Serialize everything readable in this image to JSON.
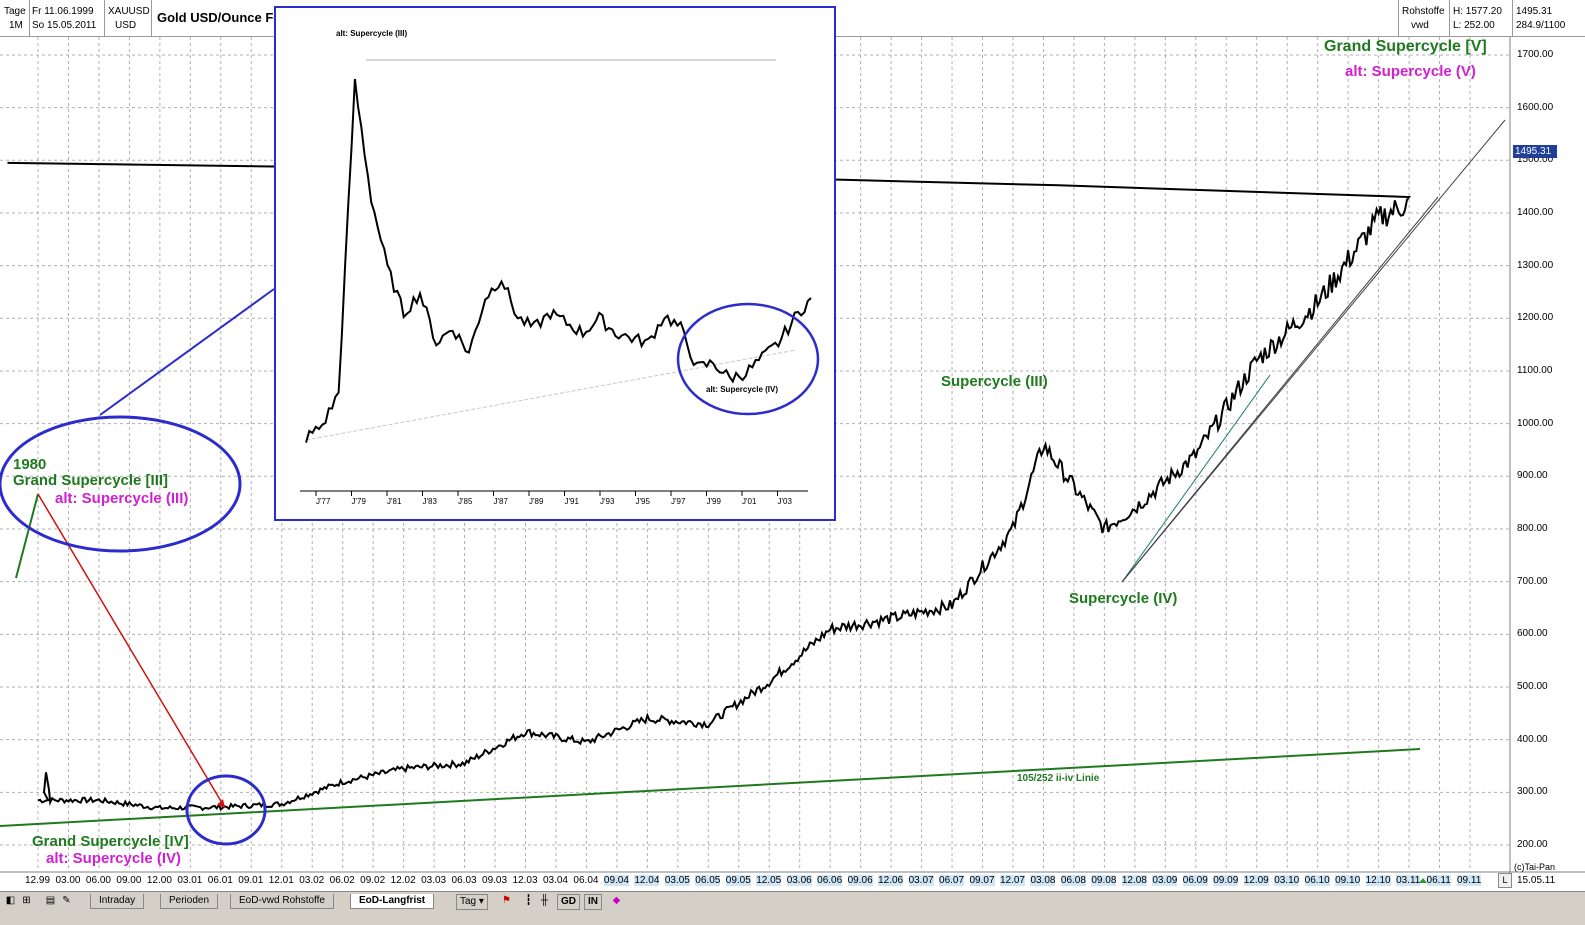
{
  "header": {
    "period_label": "Tage",
    "period_value": "1M",
    "date_from": "Fr 11.06.1999",
    "date_to": "So 15.05.2011",
    "symbol": "XAUUSD",
    "currency": "USD",
    "title": "Gold USD/Ounce  Forex",
    "source1": "Rohstoffe",
    "source2": "vwd",
    "high": "H:  1577.20",
    "low": "L:  252.00",
    "last": "1495.31",
    "range": "284.9/1100"
  },
  "price_tag": "1495.31",
  "end_date": "15.05.11",
  "copyright": "(c)Tai-Pan",
  "y_labels": [
    "1700.00",
    "1600.00",
    "1500.00",
    "1400.00",
    "1300.00",
    "1200.00",
    "1100.00",
    "1000.00",
    "900.00",
    "800.00",
    "700.00",
    "600.00",
    "500.00",
    "400.00",
    "300.00",
    "200.00"
  ],
  "x_labels": [
    "12.99",
    "03.00",
    "06.00",
    "09.00",
    "12.00",
    "03.01",
    "06.01",
    "09.01",
    "12.01",
    "03.02",
    "06.02",
    "09.02",
    "12.02",
    "03.03",
    "06.03",
    "09.03",
    "12.03",
    "03.04",
    "06.04",
    "09.04",
    "12.04",
    "03.05",
    "06.05",
    "09.05",
    "12.05",
    "03.06",
    "06.06",
    "09.06",
    "12.06",
    "03.07",
    "06.07",
    "09.07",
    "12.07",
    "03.08",
    "06.08",
    "09.08",
    "12.08",
    "03.09",
    "06.09",
    "09.09",
    "12.09",
    "03.10",
    "06.10",
    "09.10",
    "12.10",
    "03.11",
    "06.11",
    "09.11"
  ],
  "annotations": {
    "grand_v": "Grand Supercycle [V]",
    "alt_v": "alt: Supercycle (V)",
    "sc_iii": "Supercycle (III)",
    "sc_iv": "Supercycle (IV)",
    "year_1980": "1980",
    "grand_iii": "Grand Supercycle [III]",
    "alt_iii": "alt: Supercycle (III)",
    "grand_iv": "Grand Supercycle [IV]",
    "alt_iv": "alt: Supercycle (IV)",
    "trendline": "105/252 ii-iv Linie"
  },
  "inset": {
    "top_label": "alt: Supercycle (III)",
    "circle_label": "alt: Supercycle (IV)",
    "x_labels": [
      "J'77",
      "J'79",
      "J'81",
      "J'83",
      "J'85",
      "J'87",
      "J'89",
      "J'91",
      "J'93",
      "J'95",
      "J'97",
      "J'99",
      "J'01",
      "J'03"
    ]
  },
  "tabs": [
    "Intraday",
    "Perioden",
    "EoD-vwd Rohstoffe",
    "EoD-Langfrist"
  ],
  "toolbar": {
    "tag": "Tag",
    "gd": "GD",
    "in": "IN",
    "l": "L"
  },
  "colors": {
    "grid": "#b0b0b0",
    "price": "#000000",
    "ellipse": "#2c2ccc",
    "trend_green": "#1f7a1f",
    "red": "#d01010"
  },
  "chart_data": {
    "type": "line",
    "title": "Gold USD/Ounce  Forex",
    "xlabel": "",
    "ylabel": "",
    "ylim": [
      150,
      1750
    ],
    "x": [
      "12.99",
      "06.00",
      "12.00",
      "06.01",
      "12.01",
      "06.02",
      "12.02",
      "06.03",
      "12.03",
      "06.04",
      "12.04",
      "06.05",
      "12.05",
      "06.06",
      "12.06",
      "06.07",
      "12.07",
      "03.08",
      "09.08",
      "12.08",
      "06.09",
      "12.09",
      "06.10",
      "12.10",
      "03.11",
      "05.11"
    ],
    "series": [
      {
        "values": [
          285,
          285,
          270,
          272,
          278,
          320,
          345,
          355,
          415,
          395,
          440,
          430,
          510,
          610,
          630,
          655,
          800,
          960,
          800,
          840,
          940,
          1120,
          1230,
          1390,
          1420,
          1495
        ]
      }
    ],
    "grid": true
  }
}
